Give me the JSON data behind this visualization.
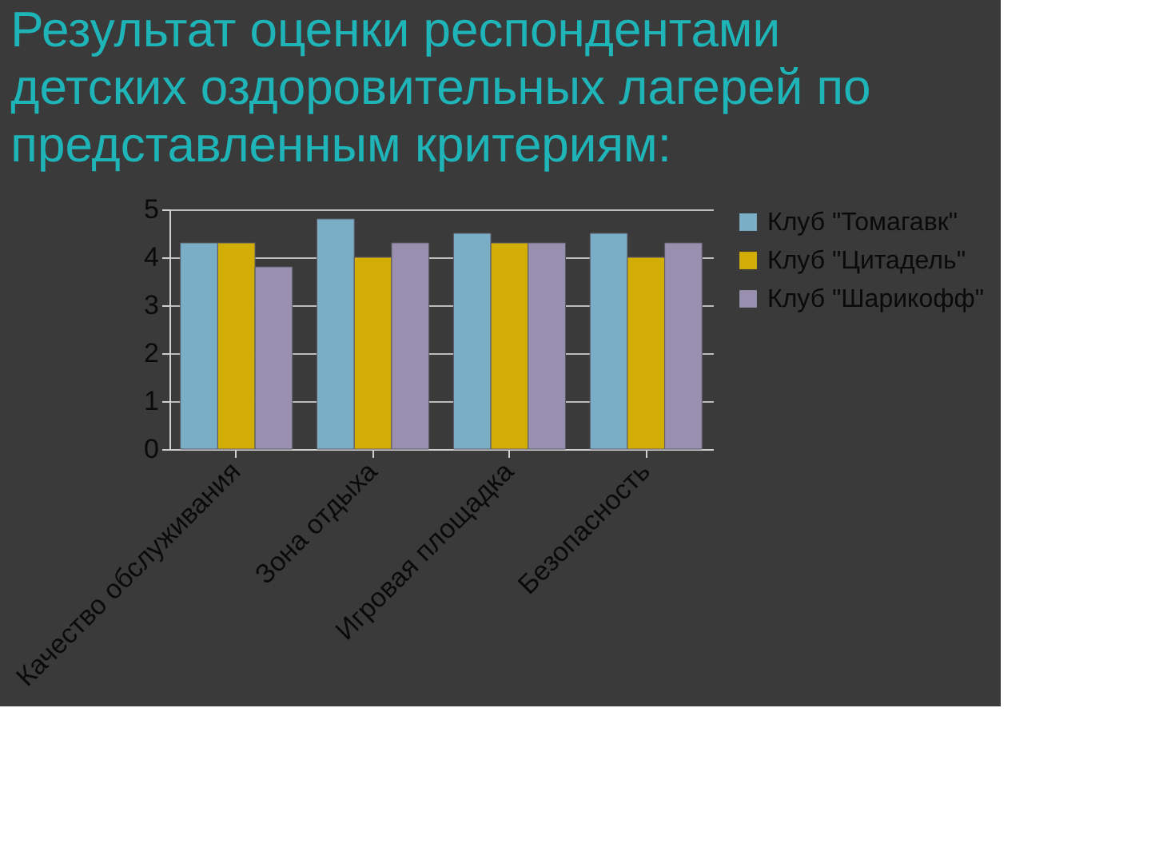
{
  "chart_data": {
    "type": "bar",
    "title": "Результат  оценки респондентами детских оздоровительных лагерей по представленным критериям:",
    "categories": [
      "Качество обслуживания",
      "Зона отдыха",
      "Игровая площадка",
      "Безопасность"
    ],
    "series": [
      {
        "name": "Клуб \"Томагавк\"",
        "color": "#7aaec6",
        "values": [
          4.3,
          4.8,
          4.5,
          4.5
        ]
      },
      {
        "name": "Клуб \"Цитадель\"",
        "color": "#d2ad06",
        "values": [
          4.3,
          4.0,
          4.3,
          4.0
        ]
      },
      {
        "name": "Клуб \"Шарикофф\"",
        "color": "#9890ae",
        "values": [
          3.8,
          4.3,
          4.3,
          4.3
        ]
      }
    ],
    "ylim": [
      0,
      5
    ],
    "yticks": [
      0,
      1,
      2,
      3,
      4,
      5
    ],
    "grid": "y",
    "legend": "right"
  }
}
